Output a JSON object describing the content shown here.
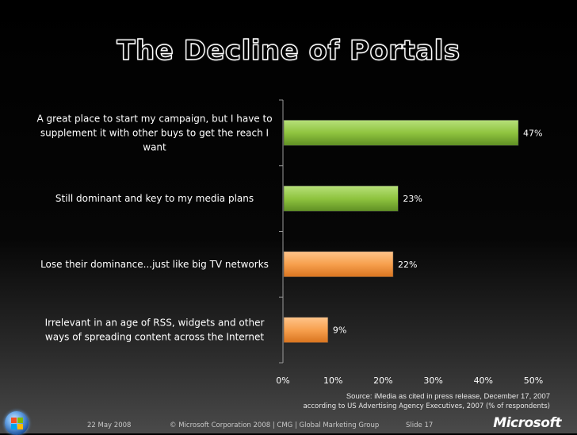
{
  "slide": {
    "title": "The Decline of Portals",
    "source_line1": "Source: iMedia as cited in press release, December 17, 2007",
    "source_line2": "according to US Advertising Agency Executives, 2007 (% of respondents)",
    "footer_date": "22 May 2008",
    "footer_copyright": "© Microsoft Corporation 2008 | CMG | Global Marketing Group",
    "footer_slide": "Slide 17",
    "brand": "Microsoft"
  },
  "colors": {
    "green_bar": "#8fc43f",
    "orange_bar": "#f7a04e",
    "axis": "#9a9a9a"
  },
  "chart_data": {
    "type": "bar",
    "orientation": "horizontal",
    "title": "The Decline of Portals",
    "categories": [
      [
        "A great place to start my campaign, but I have to",
        "supplement it with other buys to get the reach I",
        "want"
      ],
      [
        "Still dominant and key to my media plans"
      ],
      [
        "Lose their dominance...just like big TV networks"
      ],
      [
        "Irrelevant in an age of RSS, widgets and other",
        "ways of spreading content across the Internet"
      ]
    ],
    "values": [
      47,
      23,
      22,
      9
    ],
    "value_labels": [
      "47%",
      "23%",
      "22%",
      "9%"
    ],
    "bar_colors": [
      "green",
      "green",
      "orange",
      "orange"
    ],
    "xlim": [
      0,
      50
    ],
    "xticks": [
      0,
      10,
      20,
      30,
      40,
      50
    ],
    "xtick_labels": [
      "0%",
      "10%",
      "20%",
      "30%",
      "40%",
      "50%"
    ],
    "xlabel": "",
    "ylabel": "",
    "grid": false,
    "legend": "none"
  }
}
